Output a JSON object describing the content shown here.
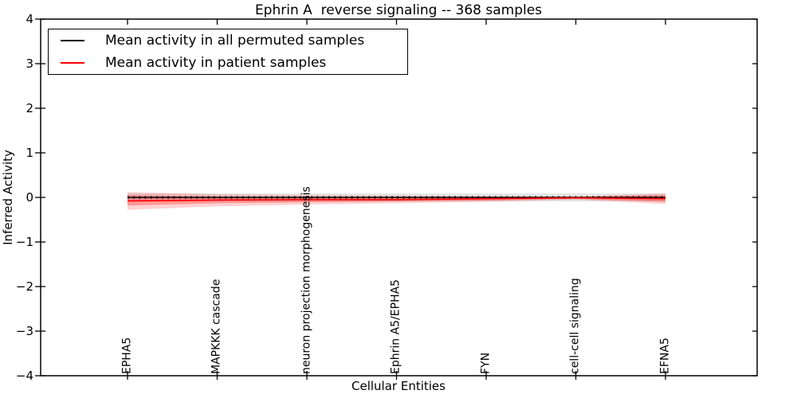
{
  "figure": {
    "title": "Ephrin A  reverse signaling -- 368 samples",
    "xlabel": "Cellular Entities",
    "ylabel": "Inferred Activity"
  },
  "legend": {
    "entries": [
      {
        "label": "Mean activity in all permuted samples",
        "color": "#000000"
      },
      {
        "label": "Mean activity in patient samples",
        "color": "#ff0000"
      }
    ]
  },
  "chart_data": {
    "type": "line",
    "title": "Ephrin A  reverse signaling -- 368 samples",
    "xlabel": "Cellular Entities",
    "ylabel": "Inferred Activity",
    "ylim": [
      -4,
      4
    ],
    "yticks": [
      4,
      3,
      2,
      1,
      0,
      -1,
      -2,
      -3,
      -4
    ],
    "ytick_labels": [
      "4",
      "3",
      "2",
      "1",
      "0",
      "−1",
      "−2",
      "−3",
      "−4"
    ],
    "grid": false,
    "legend_position": "upper left",
    "categories": [
      "EPHA5",
      "MAPKKK cascade",
      "neuron projection morphogenesis",
      "Ephrin A5/EPHA5",
      "FYN",
      "cell-cell signaling",
      "EFNA5"
    ],
    "series": [
      {
        "name": "Mean activity in all permuted samples",
        "color": "#000000",
        "line_style": "solid with dense dot markers",
        "values": [
          0,
          0,
          0,
          0,
          0,
          0,
          0
        ],
        "bands": [
          {
            "upper": [
              0.09,
              0.09,
              0.09,
              0.09,
              0.09,
              0.09,
              0.09
            ],
            "lower": [
              -0.09,
              -0.09,
              -0.09,
              -0.09,
              -0.09,
              -0.09,
              -0.09
            ],
            "color": "#000000",
            "opacity": 0.1
          }
        ]
      },
      {
        "name": "Mean activity in patient samples",
        "color": "#ff0000",
        "line_style": "solid",
        "values": [
          -0.08,
          -0.06,
          -0.05,
          -0.05,
          -0.03,
          -0.01,
          -0.03
        ],
        "bands": [
          {
            "upper": [
              0.12,
              0.07,
              0.05,
              0.04,
              0.03,
              0.02,
              0.09
            ],
            "lower": [
              -0.28,
              -0.2,
              -0.16,
              -0.13,
              -0.1,
              -0.05,
              -0.15
            ],
            "color": "#ff0000",
            "opacity": 0.18
          },
          {
            "upper": [
              0.05,
              0.02,
              0.01,
              0.01,
              0.01,
              0.01,
              0.05
            ],
            "lower": [
              -0.18,
              -0.13,
              -0.11,
              -0.09,
              -0.07,
              -0.03,
              -0.1
            ],
            "color": "#ff0000",
            "opacity": 0.28
          }
        ]
      }
    ]
  }
}
